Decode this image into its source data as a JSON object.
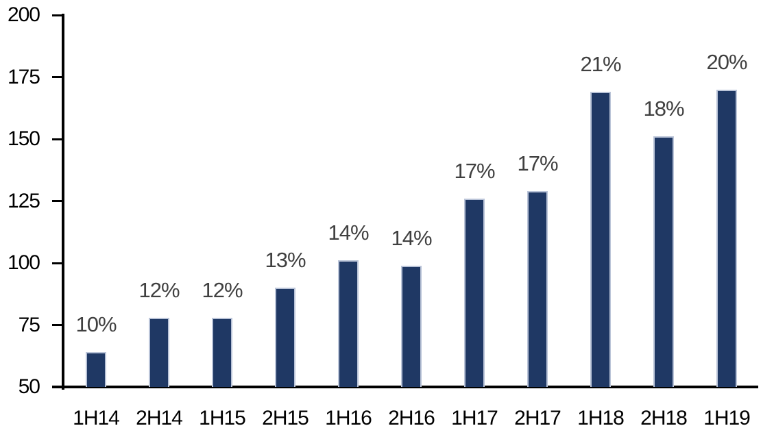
{
  "chart_data": {
    "type": "bar",
    "title": "",
    "xlabel": "",
    "ylabel": "",
    "categories": [
      "1H14",
      "2H14",
      "1H15",
      "2H15",
      "1H16",
      "2H16",
      "1H17",
      "2H17",
      "1H18",
      "2H18",
      "1H19"
    ],
    "values": [
      64,
      78,
      78,
      90,
      101,
      99,
      126,
      129,
      169,
      151,
      170
    ],
    "bar_labels": [
      "10%",
      "12%",
      "12%",
      "13%",
      "14%",
      "14%",
      "17%",
      "17%",
      "21%",
      "18%",
      "20%"
    ],
    "y_ticks": [
      50,
      75,
      100,
      125,
      150,
      175,
      200
    ],
    "ylim": [
      50,
      200
    ],
    "grid": false,
    "legend": false,
    "colors": {
      "bar_fill": "#1f3864",
      "bar_border": "#bac4d8",
      "data_label": "#404040",
      "axis_label": "#000000",
      "axis_line": "#000000",
      "background": "#ffffff"
    }
  }
}
